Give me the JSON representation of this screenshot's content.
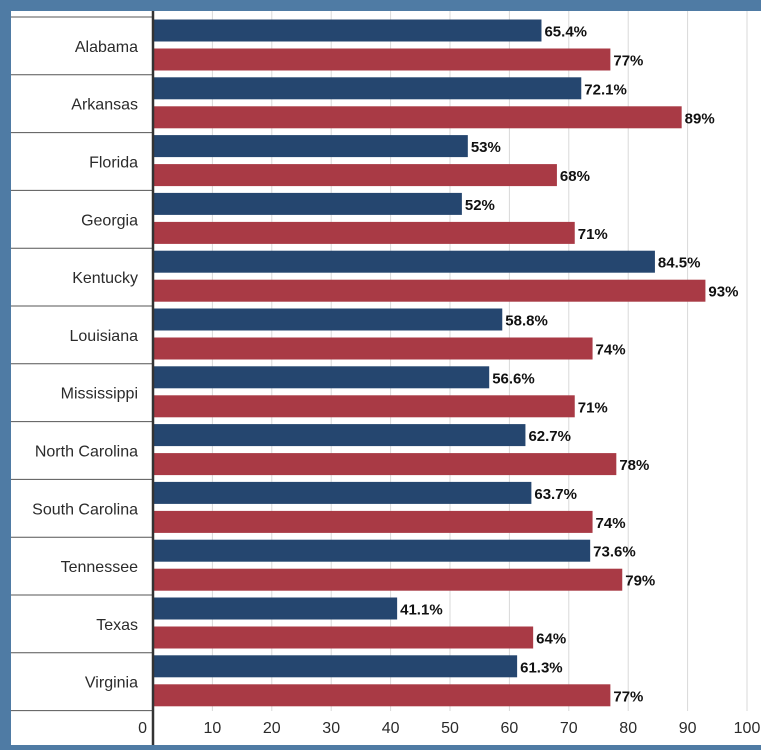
{
  "colors": {
    "frame": "#4f7ba4",
    "series_a": "#25466f",
    "series_b": "#a93a45",
    "grid": "#d9d9d9",
    "axis": "#333333"
  },
  "chart_data": {
    "type": "bar",
    "orientation": "horizontal",
    "categories": [
      "Alabama",
      "Arkansas",
      "Florida",
      "Georgia",
      "Kentucky",
      "Louisiana",
      "Mississippi",
      "North Carolina",
      "South Carolina",
      "Tennessee",
      "Texas",
      "Virginia"
    ],
    "series": [
      {
        "color": "#25466f",
        "values": [
          65.4,
          72.1,
          53,
          52,
          84.5,
          58.8,
          56.6,
          62.7,
          63.7,
          73.6,
          41.1,
          61.3
        ],
        "labels": [
          "65.4%",
          "72.1%",
          "53%",
          "52%",
          "84.5%",
          "58.8%",
          "56.6%",
          "62.7%",
          "63.7%",
          "73.6%",
          "41.1%",
          "61.3%"
        ]
      },
      {
        "color": "#a93a45",
        "values": [
          77,
          89,
          68,
          71,
          93,
          74,
          71,
          78,
          74,
          79,
          64,
          77
        ],
        "labels": [
          "77%",
          "89%",
          "68%",
          "71%",
          "93%",
          "74%",
          "71%",
          "78%",
          "74%",
          "79%",
          "64%",
          "77%"
        ]
      }
    ],
    "xlim": [
      0,
      100
    ],
    "ticks": [
      0,
      10,
      20,
      30,
      40,
      50,
      60,
      70,
      80,
      90,
      100
    ],
    "tick_labels": [
      "0",
      "10",
      "20",
      "30",
      "40",
      "50",
      "60",
      "70",
      "80",
      "90",
      "100"
    ],
    "grid": true
  }
}
